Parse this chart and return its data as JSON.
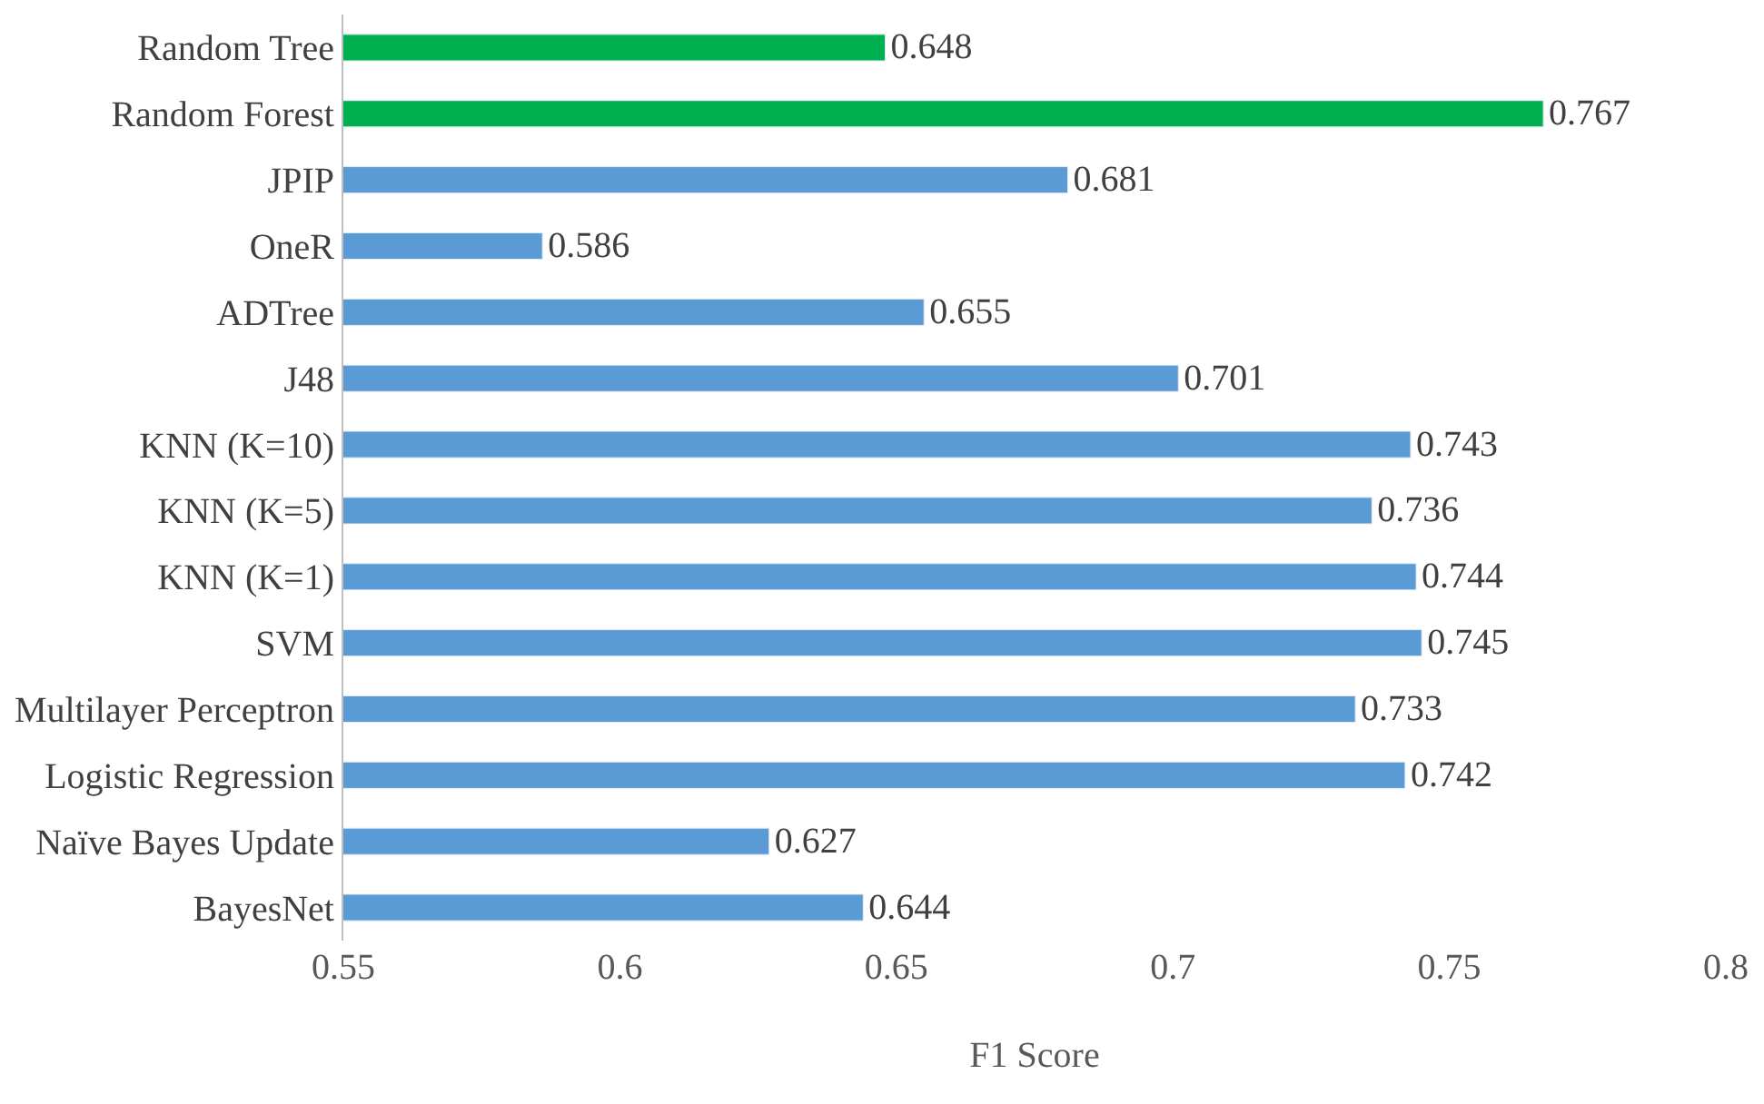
{
  "chart_data": {
    "type": "bar",
    "orientation": "horizontal",
    "xlabel": "F1 Score",
    "categories": [
      "Random Tree",
      "Random Forest",
      "JPIP",
      "OneR",
      "ADTree",
      "J48",
      "KNN (K=10)",
      "KNN (K=5)",
      "KNN (K=1)",
      "SVM",
      "Multilayer Perceptron",
      "Logistic Regression",
      "Naïve Bayes Update",
      "BayesNet"
    ],
    "values": [
      0.648,
      0.767,
      0.681,
      0.586,
      0.655,
      0.701,
      0.743,
      0.736,
      0.744,
      0.745,
      0.733,
      0.742,
      0.627,
      0.644
    ],
    "colors": [
      "#00b050",
      "#00b050",
      "#5b9bd5",
      "#5b9bd5",
      "#5b9bd5",
      "#5b9bd5",
      "#5b9bd5",
      "#5b9bd5",
      "#5b9bd5",
      "#5b9bd5",
      "#5b9bd5",
      "#5b9bd5",
      "#5b9bd5",
      "#5b9bd5"
    ],
    "xlim": [
      0.55,
      0.8
    ],
    "xticks": [
      0.55,
      0.6,
      0.65,
      0.7,
      0.75,
      0.8
    ],
    "data_labels": true,
    "grid": false
  }
}
